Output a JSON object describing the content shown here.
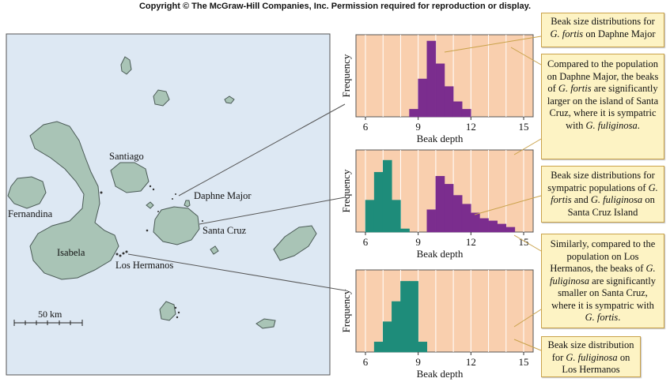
{
  "copyright": "Copyright © The McGraw-Hill Companies, Inc. Permission required for reproduction or display.",
  "map": {
    "islands": {
      "fernandina": "Fernandina",
      "isabela": "Isabela",
      "santiago": "Santiago",
      "daphne_major": "Daphne Major",
      "santa_cruz": "Santa Cruz",
      "los_hermanos": "Los Hermanos"
    },
    "scale_bar": "50 km",
    "colors": {
      "sea": "#dde8f3",
      "land": "#a9c4b6",
      "coast": "#4a5a55"
    }
  },
  "chart_data": [
    {
      "type": "bar",
      "id": "daphne",
      "xlabel": "Beak depth",
      "ylabel": "Frequency",
      "xlim": [
        6,
        15
      ],
      "x_ticks": [
        "6",
        "9",
        "12",
        "15"
      ],
      "series": [
        {
          "color": "#7b2d8e",
          "bins": [
            [
              8.5,
              9,
              1
            ],
            [
              9,
              9.5,
              5
            ],
            [
              9.5,
              10,
              10
            ],
            [
              10,
              10.5,
              7
            ],
            [
              10.5,
              11,
              4
            ],
            [
              11,
              11.5,
              2
            ],
            [
              11.5,
              12,
              1
            ]
          ]
        }
      ]
    },
    {
      "type": "bar",
      "id": "santacruz",
      "xlabel": "Beak depth",
      "ylabel": "Frequency",
      "xlim": [
        6,
        15
      ],
      "x_ticks": [
        "6",
        "9",
        "12",
        "15"
      ],
      "series": [
        {
          "color": "#1e8c7a",
          "bins": [
            [
              6,
              6.5,
              4
            ],
            [
              6.5,
              7,
              7.5
            ],
            [
              7,
              7.5,
              9
            ],
            [
              7.5,
              8,
              4
            ],
            [
              8,
              8.5,
              0.4
            ]
          ]
        },
        {
          "color": "#7b2d8e",
          "bins": [
            [
              9.5,
              10,
              2.8
            ],
            [
              10,
              10.5,
              7
            ],
            [
              10.5,
              11,
              6
            ],
            [
              11,
              11.5,
              4.6
            ],
            [
              11.5,
              12,
              3.5
            ],
            [
              12,
              12.5,
              2.4
            ],
            [
              12.5,
              13,
              1.7
            ],
            [
              13,
              13.5,
              1.4
            ],
            [
              13.5,
              14,
              1
            ],
            [
              14,
              14.5,
              0.6
            ]
          ]
        }
      ]
    },
    {
      "type": "bar",
      "id": "loshermanos",
      "xlabel": "Beak depth",
      "ylabel": "Frequency",
      "xlim": [
        6,
        15
      ],
      "x_ticks": [
        "6",
        "9",
        "12",
        "15"
      ],
      "series": [
        {
          "color": "#1e8c7a",
          "bins": [
            [
              6.5,
              7,
              1
            ],
            [
              7,
              7.5,
              3
            ],
            [
              7.5,
              8,
              5
            ],
            [
              8,
              8.5,
              7
            ],
            [
              8.5,
              9,
              7
            ],
            [
              9,
              9.5,
              1
            ]
          ]
        }
      ]
    }
  ],
  "annotations": {
    "a1": {
      "t1": "Beak size distributions for",
      "i1": "G. fortis",
      "t2": " on Daphne Major"
    },
    "a2": {
      "t1": "Compared to the population on Daphne Major, the beaks of ",
      "i1": "G. fortis",
      "t2": " are significantly larger on the island of Santa Cruz, where it is sympatric with ",
      "i2": "G. fuliginosa",
      "t3": "."
    },
    "a3": {
      "t1": "Beak size distributions for sympatric populations of ",
      "i1": "G. fortis",
      "t2": " and ",
      "i2": "G. fuliginosa",
      "t3": " on Santa Cruz Island"
    },
    "a4": {
      "t1": "Similarly, compared to the population on Los Hermanos, the beaks of ",
      "i1": "G. fuliginosa",
      "t2": " are significantly smaller on Santa Cruz, where it is sympatric with ",
      "i2": "G. fortis",
      "t3": "."
    },
    "a5": {
      "t1": "Beak size distribution for ",
      "i1": "G. fuliginosa",
      "t2": " on Los Hermanos"
    }
  }
}
